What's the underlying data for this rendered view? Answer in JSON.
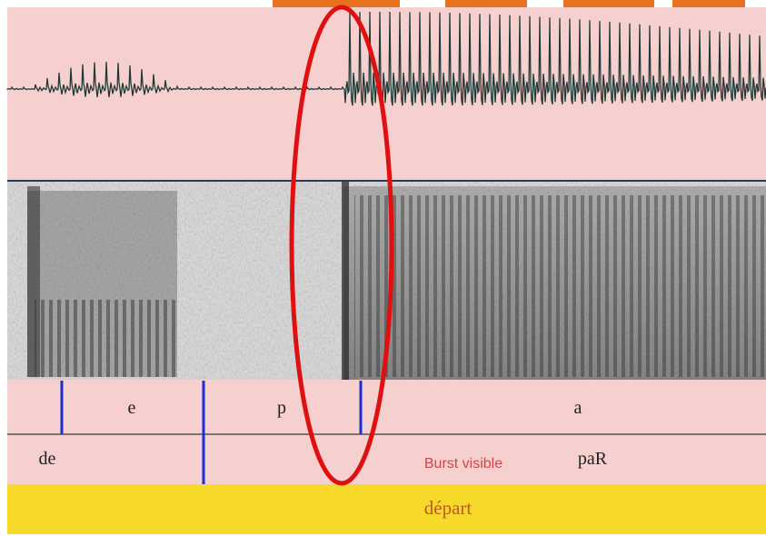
{
  "tier1": {
    "labels": [
      "e",
      "p",
      "a"
    ]
  },
  "tier2": {
    "labels": [
      "de",
      "paR"
    ]
  },
  "annotation": "Burst visible",
  "tier3": {
    "label": "départ"
  }
}
